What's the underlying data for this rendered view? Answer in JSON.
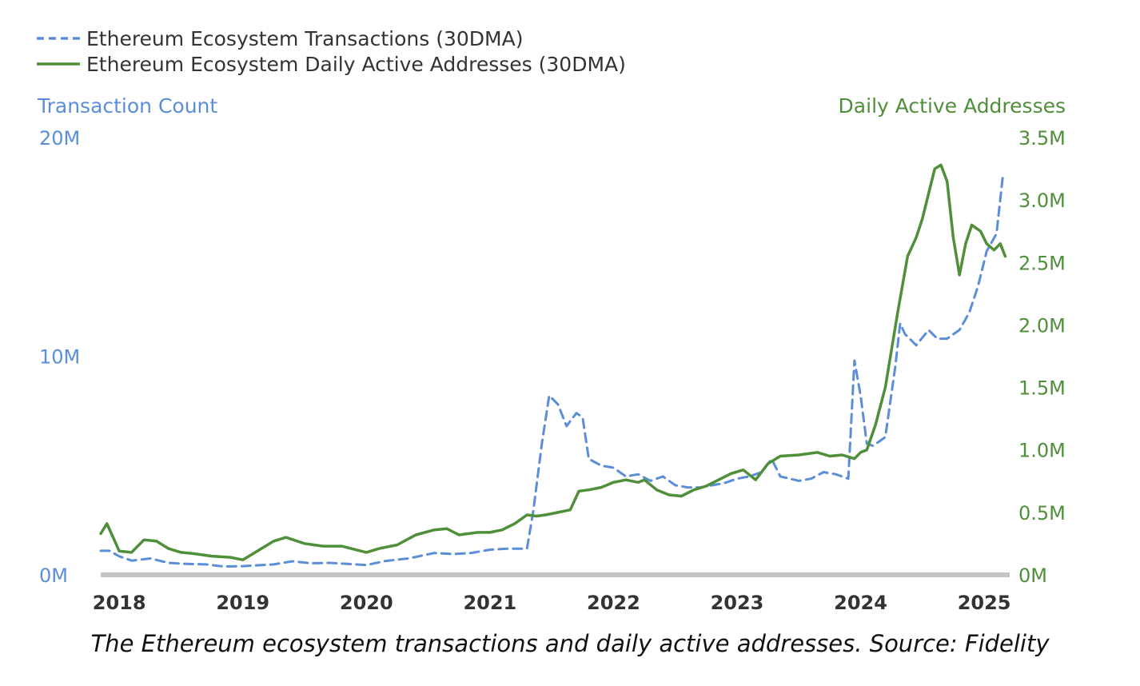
{
  "caption": "The Ethereum ecosystem transactions and daily active addresses. Source: Fidelity",
  "chart_data": {
    "type": "line",
    "legend_position": "top-left",
    "grid": false,
    "y_left": {
      "label": "Transaction Count",
      "ticks": [
        "20M",
        "10M",
        "0M"
      ],
      "ylim": [
        0,
        20000000
      ],
      "color": "#5b8ed6"
    },
    "y_right": {
      "label": "Daily Active Addresses",
      "ticks": [
        "3.5M",
        "3.0M",
        "2.5M",
        "2.0M",
        "1.5M",
        "1.0M",
        "0.5M",
        "0M"
      ],
      "ylim": [
        0,
        3500000
      ],
      "color": "#4f8f3a"
    },
    "x_ticks": [
      "2018",
      "2019",
      "2020",
      "2021",
      "2022",
      "2023",
      "2024",
      "2025"
    ],
    "xlim": [
      2017.85,
      2025.2
    ],
    "series": [
      {
        "name": "Ethereum Ecosystem Transactions (30DMA)",
        "axis": "left",
        "style": "dashed",
        "color": "#5b8ed6",
        "x": [
          2017.85,
          2017.92,
          2018.0,
          2018.1,
          2018.25,
          2018.4,
          2018.55,
          2018.7,
          2018.85,
          2019.0,
          2019.1,
          2019.25,
          2019.4,
          2019.55,
          2019.7,
          2019.85,
          2020.0,
          2020.15,
          2020.35,
          2020.55,
          2020.7,
          2020.85,
          2021.0,
          2021.15,
          2021.3,
          2021.35,
          2021.42,
          2021.48,
          2021.55,
          2021.62,
          2021.7,
          2021.75,
          2021.8,
          2021.9,
          2022.0,
          2022.1,
          2022.2,
          2022.3,
          2022.4,
          2022.5,
          2022.6,
          2022.7,
          2022.8,
          2022.9,
          2023.0,
          2023.1,
          2023.2,
          2023.28,
          2023.35,
          2023.5,
          2023.6,
          2023.7,
          2023.8,
          2023.85,
          2023.9,
          2023.95,
          2024.0,
          2024.05,
          2024.1,
          2024.2,
          2024.28,
          2024.32,
          2024.36,
          2024.45,
          2024.55,
          2024.62,
          2024.7,
          2024.8,
          2024.88,
          2024.95,
          2025.02,
          2025.1,
          2025.15
        ],
        "values": [
          1100000,
          1100000,
          850000,
          650000,
          750000,
          550000,
          500000,
          480000,
          380000,
          400000,
          430000,
          480000,
          620000,
          530000,
          550000,
          500000,
          450000,
          630000,
          760000,
          1000000,
          950000,
          1000000,
          1150000,
          1200000,
          1200000,
          2900000,
          6000000,
          8200000,
          7800000,
          6800000,
          7400000,
          7200000,
          5300000,
          5000000,
          4900000,
          4500000,
          4600000,
          4300000,
          4500000,
          4100000,
          4000000,
          4000000,
          4100000,
          4200000,
          4400000,
          4500000,
          4700000,
          5300000,
          4500000,
          4300000,
          4400000,
          4700000,
          4600000,
          4500000,
          4400000,
          9800000,
          8200000,
          6000000,
          5900000,
          6300000,
          9500000,
          11500000,
          11000000,
          10500000,
          11200000,
          10800000,
          10800000,
          11200000,
          12000000,
          13200000,
          14800000,
          15600000,
          18200000
        ]
      },
      {
        "name": "Ethereum Ecosystem Daily Active Addresses (30DMA)",
        "axis": "right",
        "style": "solid",
        "color": "#4f8f3a",
        "x": [
          2017.85,
          2017.9,
          2017.95,
          2018.0,
          2018.1,
          2018.2,
          2018.3,
          2018.4,
          2018.5,
          2018.6,
          2018.75,
          2018.9,
          2019.0,
          2019.1,
          2019.25,
          2019.35,
          2019.5,
          2019.65,
          2019.8,
          2020.0,
          2020.1,
          2020.25,
          2020.4,
          2020.55,
          2020.65,
          2020.75,
          2020.9,
          2021.0,
          2021.1,
          2021.2,
          2021.3,
          2021.38,
          2021.45,
          2021.55,
          2021.65,
          2021.72,
          2021.8,
          2021.9,
          2022.0,
          2022.1,
          2022.2,
          2022.25,
          2022.35,
          2022.45,
          2022.55,
          2022.65,
          2022.75,
          2022.85,
          2022.95,
          2023.05,
          2023.15,
          2023.25,
          2023.35,
          2023.5,
          2023.65,
          2023.75,
          2023.85,
          2023.95,
          2024.0,
          2024.05,
          2024.12,
          2024.2,
          2024.3,
          2024.38,
          2024.45,
          2024.5,
          2024.55,
          2024.6,
          2024.65,
          2024.7,
          2024.75,
          2024.8,
          2024.85,
          2024.9,
          2024.97,
          2025.02,
          2025.08,
          2025.13,
          2025.17
        ],
        "values": [
          330000,
          410000,
          300000,
          190000,
          180000,
          280000,
          270000,
          210000,
          180000,
          170000,
          150000,
          140000,
          120000,
          180000,
          270000,
          300000,
          250000,
          230000,
          230000,
          180000,
          210000,
          240000,
          320000,
          360000,
          370000,
          320000,
          340000,
          340000,
          360000,
          410000,
          480000,
          470000,
          480000,
          500000,
          520000,
          670000,
          680000,
          700000,
          740000,
          760000,
          740000,
          760000,
          680000,
          640000,
          630000,
          680000,
          710000,
          760000,
          810000,
          840000,
          760000,
          890000,
          950000,
          960000,
          980000,
          950000,
          960000,
          930000,
          980000,
          1000000,
          1200000,
          1500000,
          2100000,
          2550000,
          2700000,
          2850000,
          3050000,
          3250000,
          3280000,
          3150000,
          2700000,
          2400000,
          2650000,
          2800000,
          2750000,
          2650000,
          2600000,
          2650000,
          2550000
        ]
      }
    ]
  }
}
